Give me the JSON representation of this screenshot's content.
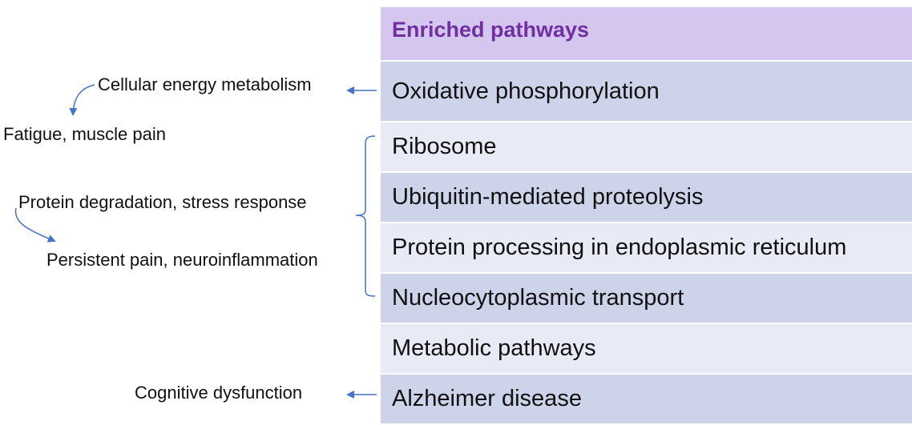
{
  "table": {
    "header": "Enriched pathways",
    "rows": [
      "Oxidative phosphorylation",
      "Ribosome",
      "Ubiquitin-mediated proteolysis",
      "Protein processing in endoplasmic reticulum",
      "Nucleocytoplasmic transport",
      "Metabolic pathways",
      "Alzheimer disease"
    ]
  },
  "annotations": {
    "cellular_energy": "Cellular energy metabolism",
    "fatigue": "Fatigue, muscle pain",
    "protein_degradation": "Protein degradation, stress response",
    "persistent_pain": "Persistent pain, neuroinflammation",
    "cognitive": "Cognitive dysfunction"
  },
  "colors": {
    "header_bg": "#d4c6ef",
    "header_text": "#7030a0",
    "row_dark": "#cdd4e9",
    "row_light": "#e8ebf5",
    "arrow": "#4472c4"
  }
}
